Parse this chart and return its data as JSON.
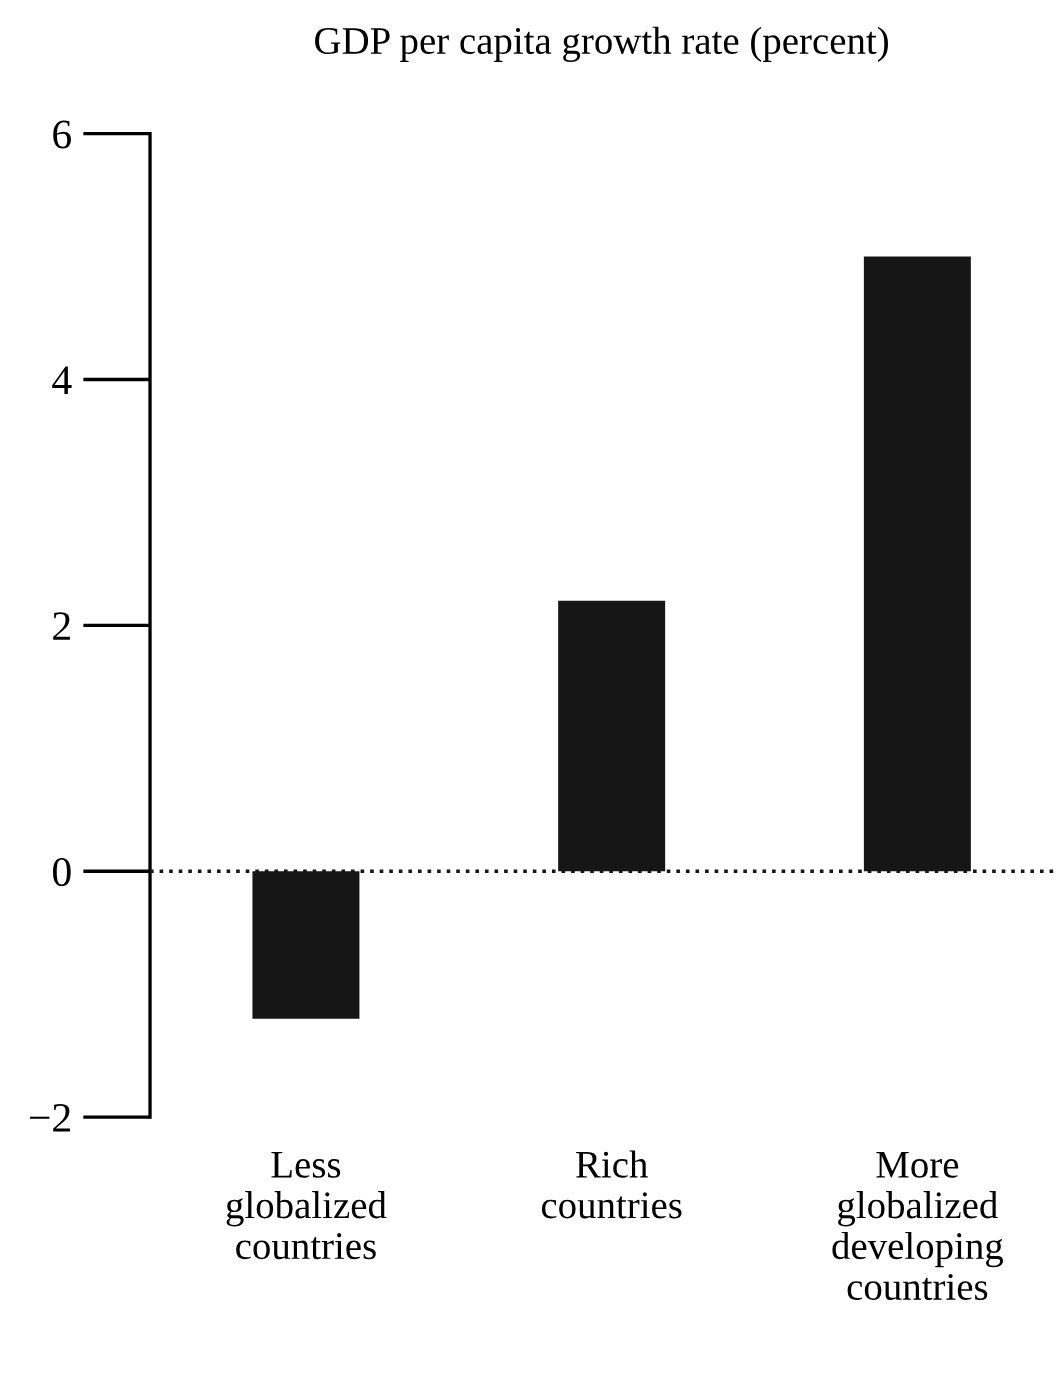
{
  "chart_data": {
    "type": "bar",
    "title": "GDP per capita growth rate (percent)",
    "categories": [
      "Less\nglobalized\ncountries",
      "Rich\ncountries",
      "More\nglobalized\ndeveloping\ncountries"
    ],
    "values": [
      -1.2,
      2.2,
      5.0
    ],
    "color": "#161616",
    "ylim": [
      -2,
      6
    ],
    "yticks": [
      {
        "value": -2,
        "label": "−2"
      },
      0,
      2,
      4,
      6
    ],
    "ref_lines": [
      {
        "axis": "y",
        "value": 0,
        "color": "#161616",
        "line_style": "dotted"
      }
    ],
    "grid": false,
    "legend": false
  }
}
